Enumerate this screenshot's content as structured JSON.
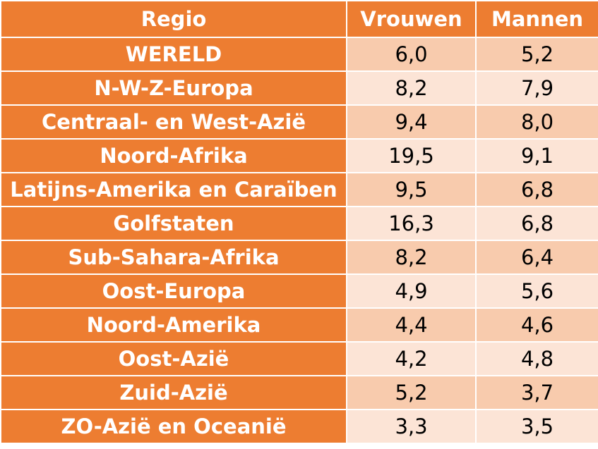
{
  "colors": {
    "header_bg": "#ed7d31",
    "header_text": "#ffffff",
    "row_band_dark": "#f8cbad",
    "row_band_light": "#fce4d6",
    "cell_text": "#000000",
    "grid_line": "#ffffff"
  },
  "header": {
    "region": "Regio",
    "women": "Vrouwen",
    "men": "Mannen"
  },
  "rows": [
    {
      "region": "WERELD",
      "women": "6,0",
      "men": "5,2"
    },
    {
      "region": "N-W-Z-Europa",
      "women": "8,2",
      "men": "7,9"
    },
    {
      "region": "Centraal- en West-Azië",
      "women": "9,4",
      "men": "8,0"
    },
    {
      "region": "Noord-Afrika",
      "women": "19,5",
      "men": "9,1"
    },
    {
      "region": "Latijns-Amerika en Caraïben",
      "women": "9,5",
      "men": "6,8"
    },
    {
      "region": "Golfstaten",
      "women": "16,3",
      "men": "6,8"
    },
    {
      "region": "Sub-Sahara-Afrika",
      "women": "8,2",
      "men": "6,4"
    },
    {
      "region": "Oost-Europa",
      "women": "4,9",
      "men": "5,6"
    },
    {
      "region": "Noord-Amerika",
      "women": "4,4",
      "men": "4,6"
    },
    {
      "region": "Oost-Azië",
      "women": "4,2",
      "men": "4,8"
    },
    {
      "region": "Zuid-Azië",
      "women": "5,2",
      "men": "3,7"
    },
    {
      "region": "ZO-Azië en Oceanië",
      "women": "3,3",
      "men": "3,5"
    }
  ]
}
